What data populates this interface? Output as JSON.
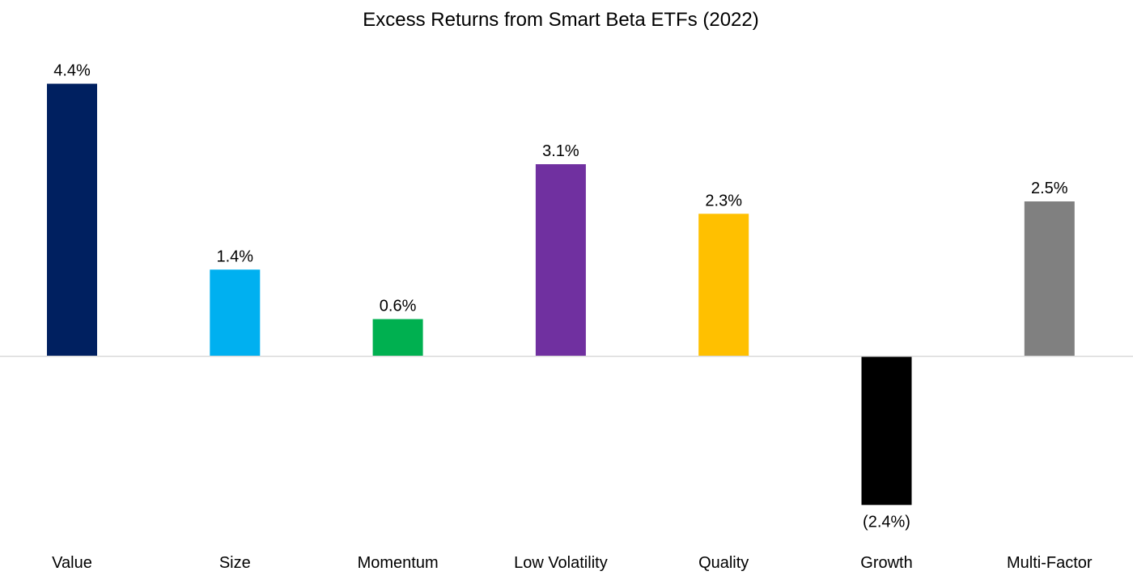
{
  "chart_data": {
    "type": "bar",
    "title": "Excess Returns from Smart Beta ETFs (2022)",
    "xlabel": "",
    "ylabel": "",
    "categories": [
      "Value",
      "Size",
      "Momentum",
      "Low Volatility",
      "Quality",
      "Growth",
      "Multi-Factor"
    ],
    "values": [
      4.4,
      1.4,
      0.6,
      3.1,
      2.3,
      -2.4,
      2.5
    ],
    "data_labels": [
      "4.4%",
      "1.4%",
      "0.6%",
      "3.1%",
      "2.3%",
      "(2.4%)",
      "2.5%"
    ],
    "colors": [
      "#002060",
      "#00B0F0",
      "#00B050",
      "#7030A0",
      "#FFC000",
      "#000000",
      "#808080"
    ],
    "ylim": [
      -3.0,
      5.0
    ],
    "grid": false,
    "legend": "none",
    "zero_line_color": "#D9D9D9"
  }
}
